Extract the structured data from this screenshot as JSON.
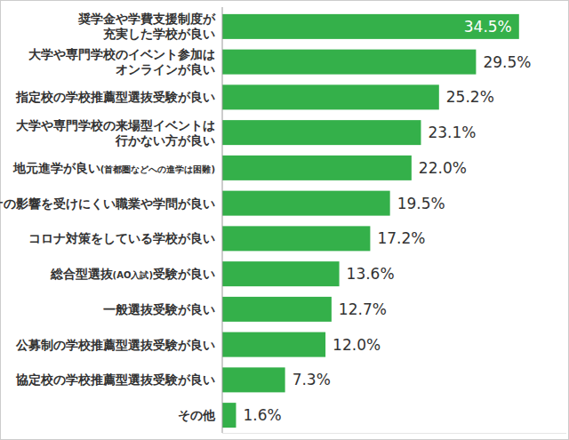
{
  "chart_data": {
    "type": "bar",
    "orientation": "horizontal",
    "categories": [
      "奨学金や学費支援制度が\n充実した学校が良い",
      "大学や専門学校のイベント参加は\nオンラインが良い",
      "指定校の学校推薦型選抜受験が良い",
      "大学や専門学校の来場型イベントは\n行かない方が良い",
      "地元進学が良い(首都圏などへの進学は困難)",
      "コロナの影響を受けにくい職業や学問が良い",
      "コロナ対策をしている学校が良い",
      "総合型選抜(AO入試)受験が良い",
      "一般選抜受験が良い",
      "公募制の学校推薦型選抜受験が良い",
      "協定校の学校推薦型選抜受験が良い",
      "その他"
    ],
    "values": [
      34.5,
      29.5,
      25.2,
      23.1,
      22.0,
      19.5,
      17.2,
      13.6,
      12.7,
      12.0,
      7.3,
      1.6
    ],
    "value_labels": [
      "34.5%",
      "29.5%",
      "25.2%",
      "23.1%",
      "22.0%",
      "19.5%",
      "17.2%",
      "13.6%",
      "12.7%",
      "12.0%",
      "7.3%",
      "1.6%"
    ],
    "color": "#34b04a",
    "xlim": [
      0,
      40
    ],
    "data_labels": true,
    "grid": false,
    "tick_labels": false
  }
}
